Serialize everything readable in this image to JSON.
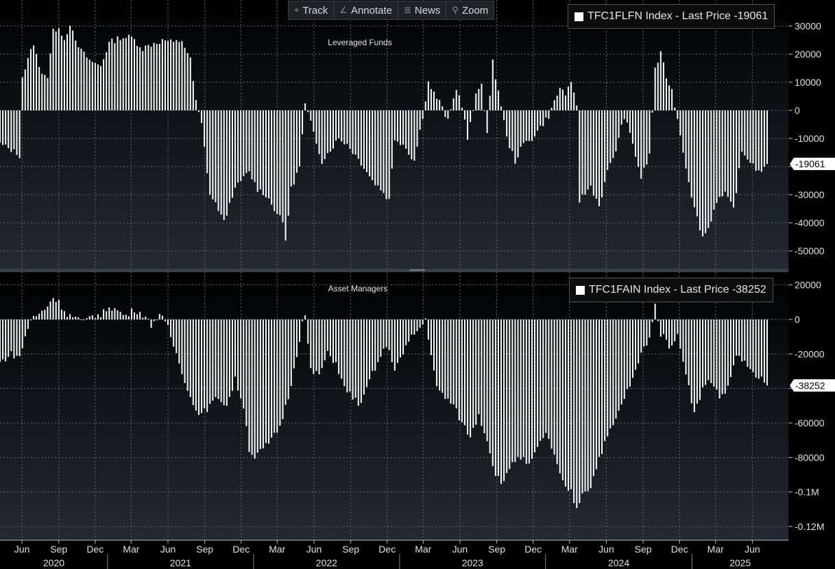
{
  "toolbar": {
    "track_label": "Track",
    "annotate_label": "Annotate",
    "news_label": "News",
    "zoom_label": "Zoom"
  },
  "colors": {
    "background": "#000000",
    "bars": "#ffffff",
    "grid": "#6b6b6b",
    "toolbar": "#1e2126"
  },
  "x_axis": {
    "month_labels": [
      "Jun",
      "Sep",
      "Dec",
      "Mar",
      "Jun",
      "Sep",
      "Dec",
      "Mar",
      "Jun",
      "Sep",
      "Dec",
      "Mar",
      "Jun",
      "Sep",
      "Dec",
      "Mar",
      "Jun",
      "Sep",
      "Dec",
      "Mar",
      "Jun"
    ],
    "year_labels": [
      "2020",
      "2021",
      "2022",
      "2023",
      "2024",
      "2025"
    ]
  },
  "chart_data": [
    {
      "type": "bar",
      "title": "Leveraged Funds",
      "legend": "TFC1FLFN Index - Last Price -19061",
      "last_value_label": "-19061",
      "ylim": [
        -55000,
        38000
      ],
      "yticks": [
        30000,
        20000,
        10000,
        0,
        -10000,
        -20000,
        -30000,
        -40000,
        -50000
      ],
      "ytick_labels": [
        "30000",
        "20000",
        "10000",
        "0",
        "-10000",
        "-20000",
        "-30000",
        "-40000",
        "-50000"
      ],
      "x_start": "2020-04-07",
      "x_end": "2025-07-08",
      "anchors": [
        [
          "2020-04-07",
          -12000
        ],
        [
          "2020-05-05",
          -14000
        ],
        [
          "2020-05-26",
          -16000
        ],
        [
          "2020-06-02",
          12000
        ],
        [
          "2020-06-16",
          18000
        ],
        [
          "2020-06-30",
          24000
        ],
        [
          "2020-07-14",
          15000
        ],
        [
          "2020-08-04",
          12000
        ],
        [
          "2020-08-18",
          28000
        ],
        [
          "2020-09-01",
          30000
        ],
        [
          "2020-09-15",
          25000
        ],
        [
          "2020-09-29",
          31000
        ],
        [
          "2020-10-13",
          24000
        ],
        [
          "2020-11-03",
          20000
        ],
        [
          "2020-11-24",
          17000
        ],
        [
          "2020-12-15",
          16000
        ],
        [
          "2021-01-05",
          24000
        ],
        [
          "2021-02-02",
          26000
        ],
        [
          "2021-03-02",
          26000
        ],
        [
          "2021-03-30",
          22000
        ],
        [
          "2021-04-27",
          24000
        ],
        [
          "2021-05-25",
          25000
        ],
        [
          "2021-06-15",
          24000
        ],
        [
          "2021-07-06",
          25000
        ],
        [
          "2021-07-27",
          18000
        ],
        [
          "2021-08-10",
          3000
        ],
        [
          "2021-08-24",
          -5000
        ],
        [
          "2021-09-14",
          -30000
        ],
        [
          "2021-10-05",
          -35000
        ],
        [
          "2021-10-19",
          -40000
        ],
        [
          "2021-11-09",
          -30000
        ],
        [
          "2021-11-30",
          -25000
        ],
        [
          "2021-12-21",
          -22000
        ],
        [
          "2022-01-11",
          -28000
        ],
        [
          "2022-02-01",
          -30000
        ],
        [
          "2022-02-22",
          -35000
        ],
        [
          "2022-03-15",
          -40000
        ],
        [
          "2022-03-22",
          -46000
        ],
        [
          "2022-04-05",
          -28000
        ],
        [
          "2022-04-26",
          -20000
        ],
        [
          "2022-05-10",
          2000
        ],
        [
          "2022-05-31",
          -8000
        ],
        [
          "2022-06-21",
          -18000
        ],
        [
          "2022-07-12",
          -14000
        ],
        [
          "2022-08-02",
          -10000
        ],
        [
          "2022-08-23",
          -12000
        ],
        [
          "2022-09-13",
          -16000
        ],
        [
          "2022-10-04",
          -20000
        ],
        [
          "2022-10-25",
          -25000
        ],
        [
          "2022-11-15",
          -28000
        ],
        [
          "2022-12-06",
          -32000
        ],
        [
          "2022-12-20",
          -10000
        ],
        [
          "2023-01-10",
          -12000
        ],
        [
          "2023-02-07",
          -18000
        ],
        [
          "2023-02-28",
          -2000
        ],
        [
          "2023-03-14",
          10000
        ],
        [
          "2023-03-28",
          6000
        ],
        [
          "2023-04-11",
          3000
        ],
        [
          "2023-05-02",
          -4000
        ],
        [
          "2023-05-23",
          8000
        ],
        [
          "2023-06-06",
          2000
        ],
        [
          "2023-06-20",
          -10000
        ],
        [
          "2023-07-11",
          5000
        ],
        [
          "2023-07-25",
          10000
        ],
        [
          "2023-08-08",
          -8000
        ],
        [
          "2023-08-22",
          17000
        ],
        [
          "2023-09-12",
          2000
        ],
        [
          "2023-09-26",
          -10000
        ],
        [
          "2023-10-17",
          -18000
        ],
        [
          "2023-11-07",
          -12000
        ],
        [
          "2023-11-28",
          -10000
        ],
        [
          "2023-12-19",
          -6000
        ],
        [
          "2024-01-09",
          -2000
        ],
        [
          "2024-01-23",
          3000
        ],
        [
          "2024-02-06",
          8000
        ],
        [
          "2024-02-20",
          6000
        ],
        [
          "2024-03-05",
          9000
        ],
        [
          "2024-03-19",
          2000
        ],
        [
          "2024-03-26",
          -32000
        ],
        [
          "2024-04-23",
          -27000
        ],
        [
          "2024-05-14",
          -34000
        ],
        [
          "2024-06-04",
          -22000
        ],
        [
          "2024-06-25",
          -14000
        ],
        [
          "2024-07-16",
          -2000
        ],
        [
          "2024-08-06",
          -12000
        ],
        [
          "2024-08-27",
          -24000
        ],
        [
          "2024-09-17",
          -16000
        ],
        [
          "2024-10-01",
          15000
        ],
        [
          "2024-10-15",
          20000
        ],
        [
          "2024-10-29",
          12000
        ],
        [
          "2024-11-12",
          7000
        ],
        [
          "2024-11-26",
          -3000
        ],
        [
          "2024-12-17",
          -20000
        ],
        [
          "2025-01-07",
          -35000
        ],
        [
          "2025-01-28",
          -45000
        ],
        [
          "2025-02-11",
          -42000
        ],
        [
          "2025-03-04",
          -32000
        ],
        [
          "2025-03-25",
          -30000
        ],
        [
          "2025-04-15",
          -35000
        ],
        [
          "2025-05-06",
          -15000
        ],
        [
          "2025-05-27",
          -18000
        ],
        [
          "2025-06-17",
          -22000
        ],
        [
          "2025-07-08",
          -19061
        ]
      ]
    },
    {
      "type": "bar",
      "title": "Asset Managers",
      "legend": "TFC1FAIN Index - Last Price -38252",
      "last_value_label": "-38252",
      "ylim": [
        -128000,
        25000
      ],
      "yticks": [
        20000,
        0,
        -20000,
        -40000,
        -60000,
        -80000,
        -100000,
        -120000
      ],
      "ytick_labels": [
        "20000",
        "0",
        "-20000",
        "-40000",
        "-60000",
        "-80000",
        "-0.1M",
        "-0.12M"
      ],
      "x_start": "2020-04-07",
      "x_end": "2025-07-08",
      "anchors": [
        [
          "2020-04-07",
          -25000
        ],
        [
          "2020-05-05",
          -20000
        ],
        [
          "2020-05-26",
          -22000
        ],
        [
          "2020-06-09",
          -10000
        ],
        [
          "2020-06-23",
          0
        ],
        [
          "2020-07-14",
          3000
        ],
        [
          "2020-08-04",
          8000
        ],
        [
          "2020-08-18",
          13000
        ],
        [
          "2020-09-01",
          10000
        ],
        [
          "2020-09-22",
          3000
        ],
        [
          "2020-10-13",
          1000
        ],
        [
          "2020-11-03",
          -2000
        ],
        [
          "2020-11-24",
          3000
        ],
        [
          "2020-12-15",
          2000
        ],
        [
          "2021-01-05",
          8000
        ],
        [
          "2021-01-26",
          5000
        ],
        [
          "2021-02-16",
          2000
        ],
        [
          "2021-03-09",
          6000
        ],
        [
          "2021-03-30",
          3000
        ],
        [
          "2021-04-20",
          -3000
        ],
        [
          "2021-05-11",
          3000
        ],
        [
          "2021-06-01",
          -5000
        ],
        [
          "2021-06-22",
          -20000
        ],
        [
          "2021-07-13",
          -35000
        ],
        [
          "2021-08-03",
          -50000
        ],
        [
          "2021-08-24",
          -55000
        ],
        [
          "2021-09-14",
          -50000
        ],
        [
          "2021-10-05",
          -45000
        ],
        [
          "2021-10-26",
          -50000
        ],
        [
          "2021-11-16",
          -35000
        ],
        [
          "2021-12-07",
          -50000
        ],
        [
          "2021-12-21",
          -75000
        ],
        [
          "2022-01-04",
          -80000
        ],
        [
          "2022-01-25",
          -75000
        ],
        [
          "2022-02-15",
          -70000
        ],
        [
          "2022-03-08",
          -62000
        ],
        [
          "2022-03-29",
          -45000
        ],
        [
          "2022-04-19",
          -20000
        ],
        [
          "2022-05-03",
          -2000
        ],
        [
          "2022-05-10",
          2000
        ],
        [
          "2022-05-24",
          -30000
        ],
        [
          "2022-06-14",
          -32000
        ],
        [
          "2022-07-05",
          -20000
        ],
        [
          "2022-07-26",
          -25000
        ],
        [
          "2022-08-16",
          -40000
        ],
        [
          "2022-09-06",
          -45000
        ],
        [
          "2022-09-27",
          -50000
        ],
        [
          "2022-10-18",
          -35000
        ],
        [
          "2022-11-08",
          -25000
        ],
        [
          "2022-11-29",
          -15000
        ],
        [
          "2022-12-20",
          -28000
        ],
        [
          "2023-01-10",
          -20000
        ],
        [
          "2023-01-31",
          -10000
        ],
        [
          "2023-02-21",
          -5000
        ],
        [
          "2023-03-07",
          0
        ],
        [
          "2023-03-21",
          -20000
        ],
        [
          "2023-04-04",
          -40000
        ],
        [
          "2023-04-25",
          -45000
        ],
        [
          "2023-05-16",
          -50000
        ],
        [
          "2023-06-06",
          -60000
        ],
        [
          "2023-06-27",
          -68000
        ],
        [
          "2023-07-18",
          -55000
        ],
        [
          "2023-08-08",
          -70000
        ],
        [
          "2023-08-29",
          -90000
        ],
        [
          "2023-09-19",
          -95000
        ],
        [
          "2023-10-10",
          -82000
        ],
        [
          "2023-10-31",
          -80000
        ],
        [
          "2023-11-21",
          -85000
        ],
        [
          "2023-12-12",
          -75000
        ],
        [
          "2024-01-02",
          -65000
        ],
        [
          "2024-01-23",
          -80000
        ],
        [
          "2024-02-13",
          -95000
        ],
        [
          "2024-03-05",
          -100000
        ],
        [
          "2024-03-19",
          -110000
        ],
        [
          "2024-04-02",
          -100000
        ],
        [
          "2024-04-23",
          -97000
        ],
        [
          "2024-05-14",
          -80000
        ],
        [
          "2024-06-04",
          -68000
        ],
        [
          "2024-06-25",
          -58000
        ],
        [
          "2024-07-16",
          -45000
        ],
        [
          "2024-08-06",
          -35000
        ],
        [
          "2024-08-27",
          -20000
        ],
        [
          "2024-09-17",
          -10000
        ],
        [
          "2024-10-01",
          8000
        ],
        [
          "2024-10-15",
          -8000
        ],
        [
          "2024-11-05",
          -15000
        ],
        [
          "2024-11-26",
          -10000
        ],
        [
          "2024-12-17",
          -30000
        ],
        [
          "2025-01-07",
          -55000
        ],
        [
          "2025-01-28",
          -40000
        ],
        [
          "2025-02-18",
          -35000
        ],
        [
          "2025-03-11",
          -45000
        ],
        [
          "2025-04-01",
          -40000
        ],
        [
          "2025-04-22",
          -20000
        ],
        [
          "2025-05-13",
          -25000
        ],
        [
          "2025-06-03",
          -32000
        ],
        [
          "2025-06-24",
          -35000
        ],
        [
          "2025-07-08",
          -38252
        ]
      ]
    }
  ]
}
